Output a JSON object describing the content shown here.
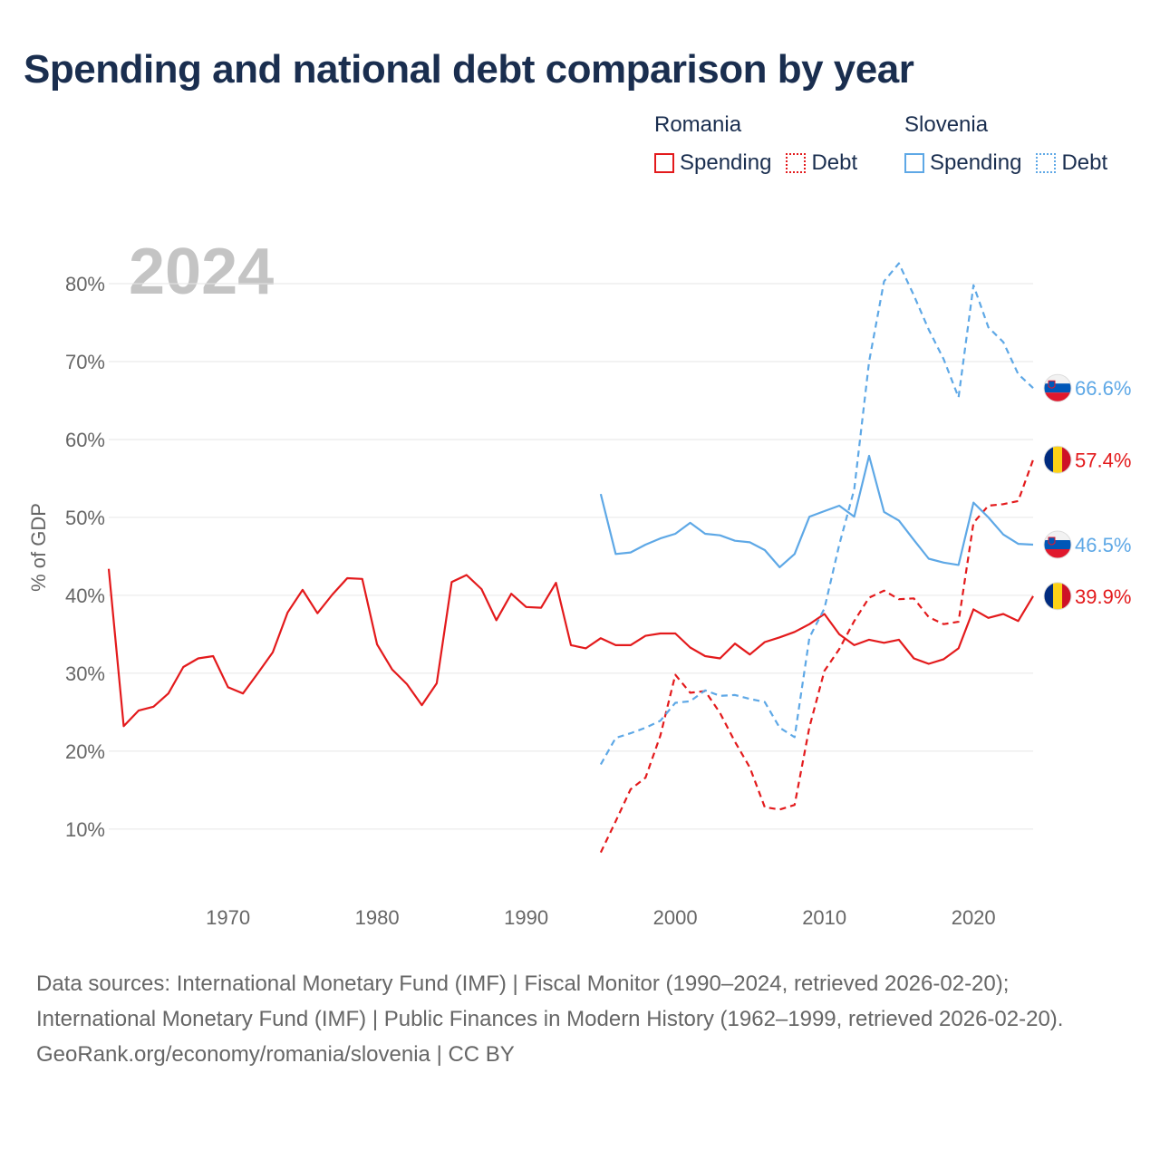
{
  "title": "Spending and national debt comparison by year",
  "legend": {
    "groups": [
      {
        "name": "Romania",
        "color": "#e31a1c",
        "items": [
          "Spending",
          "Debt"
        ]
      },
      {
        "name": "Slovenia",
        "color": "#5ea8e6",
        "items": [
          "Spending",
          "Debt"
        ]
      }
    ]
  },
  "footer": {
    "sources": "Data sources: International Monetary Fund (IMF) | Fiscal Monitor (1990–2024, retrieved 2026-02-20); International Monetary Fund (IMF) | Public Finances in Modern History (1962–1999, retrieved 2026-02-20).",
    "credit": "GeoRank.org/economy/romania/slovenia | CC BY"
  },
  "chart_data": {
    "type": "line",
    "title": "Spending and national debt comparison by year",
    "year_label": "2024",
    "ylabel": "% of GDP",
    "xlabel": "",
    "xlim": [
      1962,
      2024
    ],
    "ylim": [
      3,
      85
    ],
    "x_ticks": [
      1970,
      1980,
      1990,
      2000,
      2010,
      2020
    ],
    "y_ticks": [
      10,
      20,
      30,
      40,
      50,
      60,
      70,
      80
    ],
    "y_tick_labels": [
      "10%",
      "20%",
      "30%",
      "40%",
      "50%",
      "60%",
      "70%",
      "80%"
    ],
    "series": [
      {
        "name": "Romania Spending",
        "country": "Romania",
        "kind": "spending",
        "color": "#e31a1c",
        "dashed": false,
        "end_label": "39.9%",
        "x": [
          1962,
          1963,
          1964,
          1965,
          1966,
          1967,
          1968,
          1969,
          1970,
          1971,
          1972,
          1973,
          1974,
          1975,
          1976,
          1977,
          1978,
          1979,
          1980,
          1981,
          1982,
          1983,
          1984,
          1985,
          1986,
          1987,
          1988,
          1989,
          1990,
          1991,
          1992,
          1993,
          1994,
          1995,
          1996,
          1997,
          1998,
          1999,
          2000,
          2001,
          2002,
          2003,
          2004,
          2005,
          2006,
          2007,
          2008,
          2009,
          2010,
          2011,
          2012,
          2013,
          2014,
          2015,
          2016,
          2017,
          2018,
          2019,
          2020,
          2021,
          2022,
          2023,
          2024
        ],
        "values": [
          43.4,
          23.2,
          25.2,
          25.7,
          27.4,
          30.8,
          31.9,
          32.2,
          28.2,
          27.4,
          30.0,
          32.7,
          37.8,
          40.7,
          37.7,
          40.1,
          42.2,
          42.1,
          33.7,
          30.5,
          28.6,
          25.9,
          28.7,
          41.7,
          42.6,
          40.8,
          36.8,
          40.2,
          38.5,
          38.4,
          41.6,
          33.6,
          33.2,
          34.5,
          33.6,
          33.6,
          34.8,
          35.1,
          35.1,
          33.3,
          32.2,
          31.9,
          33.8,
          32.4,
          34.0,
          34.6,
          35.3,
          36.3,
          37.6,
          35.0,
          33.6,
          34.3,
          33.9,
          34.3,
          31.9,
          31.2,
          31.8,
          33.2,
          38.2,
          37.1,
          37.6,
          36.7,
          39.9
        ]
      },
      {
        "name": "Romania Debt",
        "country": "Romania",
        "kind": "debt",
        "color": "#e31a1c",
        "dashed": true,
        "end_label": "57.4%",
        "x": [
          1995,
          1996,
          1997,
          1998,
          1999,
          2000,
          2001,
          2002,
          2003,
          2004,
          2005,
          2006,
          2007,
          2008,
          2009,
          2010,
          2011,
          2012,
          2013,
          2014,
          2015,
          2016,
          2017,
          2018,
          2019,
          2020,
          2021,
          2022,
          2023,
          2024
        ],
        "values": [
          7.0,
          11.0,
          15.1,
          16.6,
          22.0,
          29.8,
          27.5,
          27.7,
          24.9,
          21.2,
          17.9,
          12.8,
          12.5,
          13.1,
          23.1,
          30.3,
          33.1,
          36.7,
          39.7,
          40.6,
          39.5,
          39.6,
          37.2,
          36.3,
          36.6,
          49.3,
          51.5,
          51.7,
          52.1,
          57.4
        ]
      },
      {
        "name": "Slovenia Spending",
        "country": "Slovenia",
        "kind": "spending",
        "color": "#5ea8e6",
        "dashed": false,
        "end_label": "46.5%",
        "x": [
          1995,
          1996,
          1997,
          1998,
          1999,
          2000,
          2001,
          2002,
          2003,
          2004,
          2005,
          2006,
          2007,
          2008,
          2009,
          2010,
          2011,
          2012,
          2013,
          2014,
          2015,
          2016,
          2017,
          2018,
          2019,
          2020,
          2021,
          2022,
          2023,
          2024
        ],
        "values": [
          53.0,
          45.3,
          45.5,
          46.5,
          47.3,
          47.9,
          49.3,
          47.9,
          47.7,
          47.0,
          46.8,
          45.8,
          43.6,
          45.3,
          50.1,
          50.8,
          51.5,
          50.1,
          57.9,
          50.7,
          49.6,
          47.1,
          44.7,
          44.2,
          43.9,
          51.9,
          50.0,
          47.8,
          46.6,
          46.5
        ]
      },
      {
        "name": "Slovenia Debt",
        "country": "Slovenia",
        "kind": "debt",
        "color": "#5ea8e6",
        "dashed": true,
        "end_label": "66.6%",
        "x": [
          1995,
          1996,
          1997,
          1998,
          1999,
          2000,
          2001,
          2002,
          2003,
          2004,
          2005,
          2006,
          2007,
          2008,
          2009,
          2010,
          2011,
          2012,
          2013,
          2014,
          2015,
          2016,
          2017,
          2018,
          2019,
          2020,
          2021,
          2022,
          2023,
          2024
        ],
        "values": [
          18.3,
          21.7,
          22.3,
          23.0,
          23.9,
          26.2,
          26.4,
          27.8,
          27.1,
          27.2,
          26.7,
          26.3,
          23.0,
          21.8,
          34.6,
          38.3,
          46.5,
          53.6,
          70.0,
          80.3,
          82.6,
          78.5,
          74.1,
          70.3,
          65.4,
          79.8,
          74.4,
          72.5,
          68.4,
          66.6
        ]
      }
    ]
  }
}
